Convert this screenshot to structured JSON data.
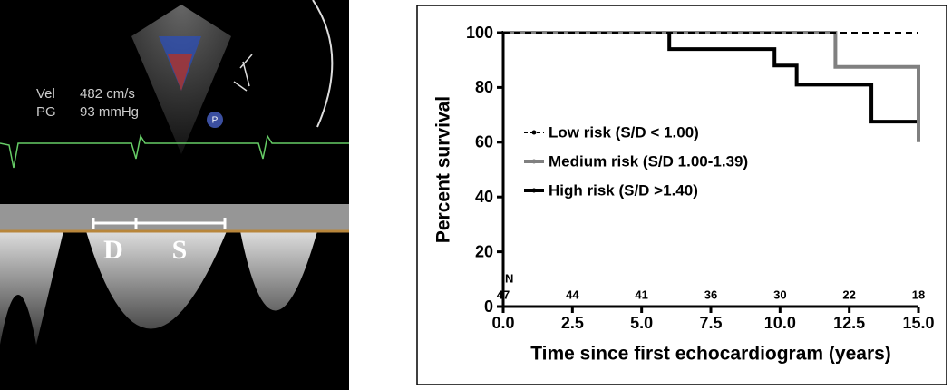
{
  "ultrasound": {
    "vel_label": "Vel",
    "vel_value": "482 cm/s",
    "pg_label": "PG",
    "pg_value": "93 mmHg",
    "marker_d": "D",
    "marker_s": "S",
    "probe": "P"
  },
  "chart_data": {
    "type": "line",
    "step": "post",
    "xlabel": "Time since first echocardiogram (years)",
    "ylabel": "Percent survival",
    "xlim": [
      0,
      15
    ],
    "ylim": [
      0,
      100
    ],
    "xticks": [
      {
        "value": 0,
        "label": "0.0"
      },
      {
        "value": 2.5,
        "label": "2.5"
      },
      {
        "value": 5,
        "label": "5.0"
      },
      {
        "value": 7.5,
        "label": "7.5"
      },
      {
        "value": 10,
        "label": "10.0"
      },
      {
        "value": 12.5,
        "label": "12.5"
      },
      {
        "value": 15,
        "label": "15.0"
      }
    ],
    "yticks": [
      0,
      20,
      40,
      60,
      80,
      100
    ],
    "series": [
      {
        "name": "Low risk (S/D < 1.00)",
        "color": "#000000",
        "dash": true,
        "x": [
          0,
          15
        ],
        "values": [
          100,
          100
        ]
      },
      {
        "name": "Medium risk (S/D 1.00-1.39)",
        "color": "#808080",
        "x": [
          0,
          12,
          15,
          15
        ],
        "values": [
          100,
          87.5,
          87.5,
          60
        ]
      },
      {
        "name": "High risk (S/D >1.40)",
        "color": "#000000",
        "x": [
          0,
          6,
          9.8,
          10.6,
          13.3,
          15
        ],
        "values": [
          100,
          94,
          88,
          81,
          67.5,
          67.5
        ]
      }
    ],
    "at_risk": {
      "label": "N",
      "values": [
        47,
        44,
        41,
        36,
        30,
        22,
        18
      ]
    }
  }
}
